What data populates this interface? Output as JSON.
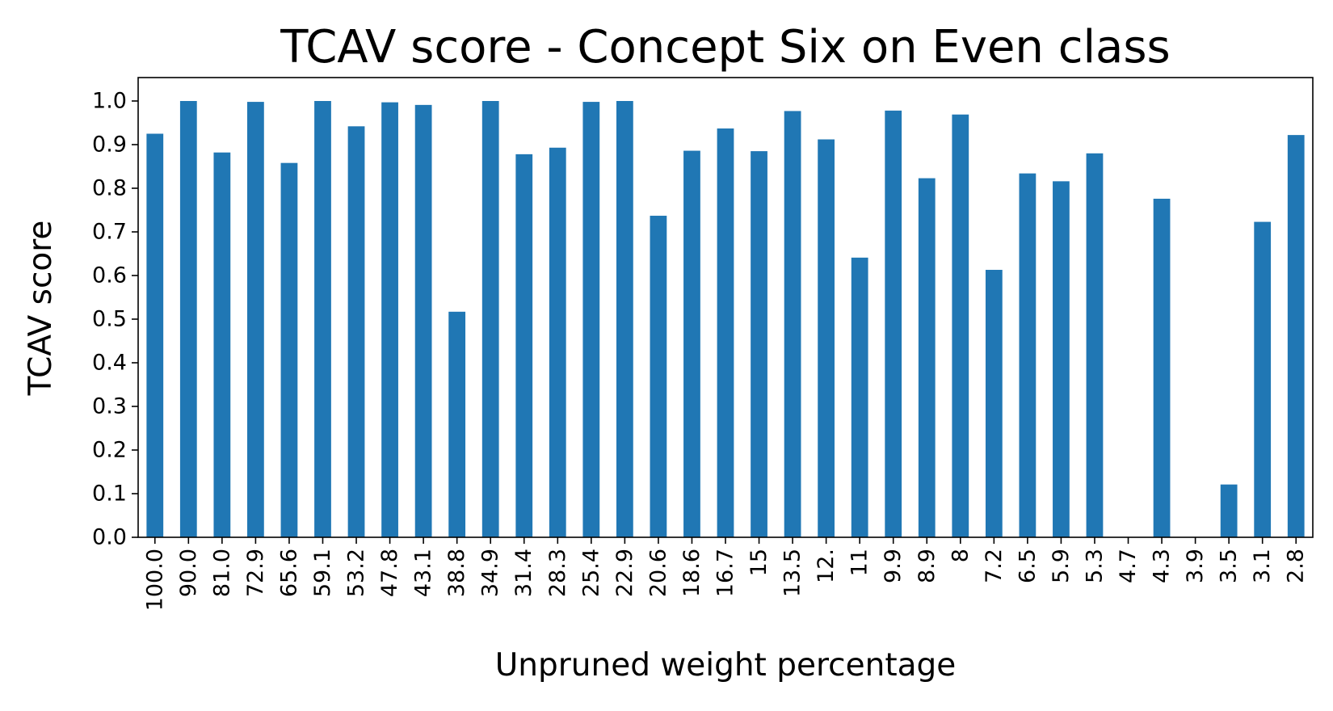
{
  "chart_data": {
    "type": "bar",
    "title": "TCAV score - Concept Six on Even class",
    "xlabel": "Unpruned weight percentage",
    "ylabel": "TCAV score",
    "categories": [
      "100.0",
      "90.0",
      "81.0",
      "72.9",
      "65.6",
      "59.1",
      "53.2",
      "47.8",
      "43.1",
      "38.8",
      "34.9",
      "31.4",
      "28.3",
      "25.4",
      "22.9",
      "20.6",
      "18.6",
      "16.7",
      "15",
      "13.5",
      "12.",
      "11",
      "9.9",
      "8.9",
      "8",
      "7.2",
      "6.5",
      "5.9",
      "5.3",
      "4.7",
      "4.3",
      "3.9",
      "3.5",
      "3.1",
      "2.8"
    ],
    "values": [
      0.925,
      1.0,
      0.882,
      0.998,
      0.858,
      1.0,
      0.942,
      0.997,
      0.991,
      0.517,
      1.0,
      0.878,
      0.893,
      0.998,
      1.0,
      0.737,
      0.886,
      0.937,
      0.885,
      0.977,
      0.912,
      0.641,
      0.978,
      0.823,
      0.969,
      0.613,
      0.834,
      0.816,
      0.88,
      0.0,
      0.776,
      0.0,
      0.121,
      0.723,
      0.922
    ],
    "yticks": [
      "0.0",
      "0.1",
      "0.2",
      "0.3",
      "0.4",
      "0.5",
      "0.6",
      "0.7",
      "0.8",
      "0.9",
      "1.0"
    ],
    "ylim": [
      0,
      1.05
    ],
    "grid": false,
    "bar_color": "#2077b4"
  }
}
